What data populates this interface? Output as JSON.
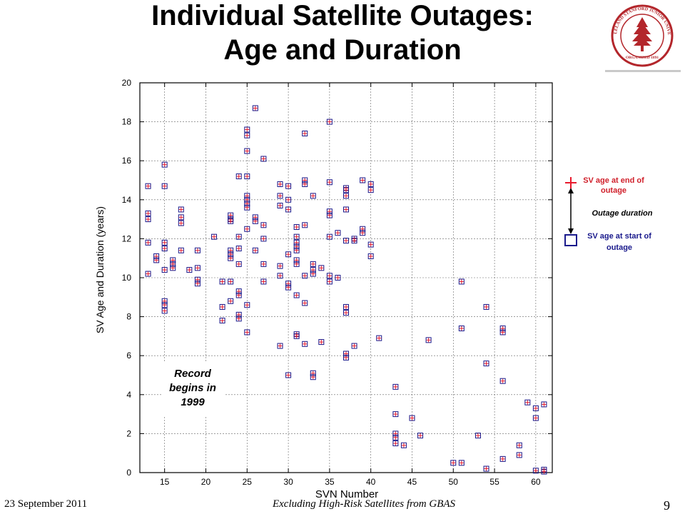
{
  "slide": {
    "title_line1": "Individual Satellite Outages:",
    "title_line2": "Age and Duration",
    "footer_date": "23 September 2011",
    "footer_subtitle": "Excluding High-Risk Satellites from GBAS",
    "page_number": "9",
    "seal_lines": [
      "LELAND STANFORD JUNIOR UNIVERSITY",
      "ORGANIZED 1891"
    ]
  },
  "chart_data": {
    "type": "scatter",
    "title": "",
    "xlabel": "SVN Number",
    "ylabel": "SV Age and Duration (years)",
    "xlim": [
      12,
      62
    ],
    "ylim": [
      0,
      20
    ],
    "xticks": [
      15,
      20,
      25,
      30,
      35,
      40,
      45,
      50,
      55,
      60
    ],
    "yticks": [
      0,
      2,
      4,
      6,
      8,
      10,
      12,
      14,
      16,
      18,
      20
    ],
    "grid": true,
    "annotation": "Record begins in 1999",
    "legend": {
      "placement": "right",
      "end_label": "SV age at end of outage",
      "duration_label": "Outage duration",
      "start_label": "SV age at start of outage"
    },
    "colors": {
      "end_marker": "#e8192c",
      "start_marker": "#1a1a8c",
      "axis": "#000000",
      "grid": "#666666"
    },
    "points": [
      [
        13,
        14.7
      ],
      [
        13,
        13.3
      ],
      [
        13,
        13.0
      ],
      [
        13,
        11.8
      ],
      [
        13,
        10.2
      ],
      [
        14,
        11.1
      ],
      [
        14,
        10.9
      ],
      [
        15,
        15.8
      ],
      [
        15,
        14.7
      ],
      [
        15,
        11.8
      ],
      [
        15,
        11.5
      ],
      [
        15,
        10.4
      ],
      [
        15,
        8.8
      ],
      [
        15,
        8.6
      ],
      [
        15,
        8.3
      ],
      [
        16,
        10.9
      ],
      [
        16,
        10.7
      ],
      [
        16,
        10.5
      ],
      [
        17,
        13.5
      ],
      [
        17,
        13.1
      ],
      [
        17,
        12.8
      ],
      [
        17,
        11.4
      ],
      [
        18,
        10.4
      ],
      [
        19,
        11.4
      ],
      [
        19,
        10.5
      ],
      [
        19,
        9.9
      ],
      [
        19,
        9.7
      ],
      [
        21,
        12.1
      ],
      [
        22,
        9.8
      ],
      [
        22,
        8.5
      ],
      [
        22,
        7.8
      ],
      [
        23,
        13.2
      ],
      [
        23,
        13.0
      ],
      [
        23,
        12.9
      ],
      [
        23,
        11.4
      ],
      [
        23,
        11.2
      ],
      [
        23,
        11.0
      ],
      [
        23,
        9.8
      ],
      [
        23,
        8.8
      ],
      [
        24,
        15.2
      ],
      [
        24,
        12.1
      ],
      [
        24,
        11.5
      ],
      [
        24,
        10.7
      ],
      [
        24,
        9.3
      ],
      [
        24,
        9.1
      ],
      [
        24,
        8.1
      ],
      [
        24,
        7.9
      ],
      [
        25,
        17.6
      ],
      [
        25,
        17.3
      ],
      [
        25,
        16.5
      ],
      [
        25,
        15.2
      ],
      [
        25,
        14.2
      ],
      [
        25,
        14.0
      ],
      [
        25,
        13.8
      ],
      [
        25,
        13.6
      ],
      [
        25,
        12.5
      ],
      [
        25,
        8.6
      ],
      [
        25,
        7.2
      ],
      [
        26,
        18.7
      ],
      [
        26,
        13.1
      ],
      [
        26,
        12.9
      ],
      [
        26,
        11.4
      ],
      [
        27,
        16.1
      ],
      [
        27,
        12.7
      ],
      [
        27,
        12.0
      ],
      [
        27,
        10.7
      ],
      [
        27,
        9.8
      ],
      [
        29,
        14.8
      ],
      [
        29,
        14.2
      ],
      [
        29,
        13.7
      ],
      [
        29,
        10.6
      ],
      [
        29,
        10.1
      ],
      [
        29,
        6.5
      ],
      [
        30,
        14.7
      ],
      [
        30,
        14.0
      ],
      [
        30,
        13.5
      ],
      [
        30,
        11.2
      ],
      [
        30,
        9.7
      ],
      [
        30,
        9.5
      ],
      [
        30,
        5.0
      ],
      [
        31,
        12.6
      ],
      [
        31,
        12.1
      ],
      [
        31,
        11.8
      ],
      [
        31,
        11.6
      ],
      [
        31,
        11.4
      ],
      [
        31,
        10.9
      ],
      [
        31,
        10.7
      ],
      [
        31,
        9.1
      ],
      [
        31,
        7.1
      ],
      [
        31,
        7.0
      ],
      [
        32,
        17.4
      ],
      [
        32,
        15.0
      ],
      [
        32,
        14.8
      ],
      [
        32,
        12.7
      ],
      [
        32,
        10.1
      ],
      [
        32,
        8.7
      ],
      [
        32,
        6.6
      ],
      [
        33,
        14.2
      ],
      [
        33,
        10.7
      ],
      [
        33,
        10.4
      ],
      [
        33,
        10.2
      ],
      [
        33,
        5.1
      ],
      [
        33,
        4.9
      ],
      [
        34,
        10.5
      ],
      [
        34,
        6.7
      ],
      [
        35,
        18.0
      ],
      [
        35,
        14.9
      ],
      [
        35,
        13.4
      ],
      [
        35,
        13.2
      ],
      [
        35,
        12.1
      ],
      [
        35,
        10.1
      ],
      [
        35,
        9.8
      ],
      [
        36,
        12.3
      ],
      [
        36,
        10.0
      ],
      [
        37,
        14.6
      ],
      [
        37,
        14.5
      ],
      [
        37,
        14.2
      ],
      [
        37,
        13.5
      ],
      [
        37,
        11.9
      ],
      [
        37,
        8.5
      ],
      [
        37,
        8.2
      ],
      [
        37,
        6.1
      ],
      [
        37,
        5.9
      ],
      [
        38,
        12.0
      ],
      [
        38,
        11.9
      ],
      [
        38,
        6.5
      ],
      [
        39,
        15.0
      ],
      [
        39,
        12.5
      ],
      [
        39,
        12.3
      ],
      [
        40,
        14.8
      ],
      [
        40,
        14.5
      ],
      [
        40,
        11.7
      ],
      [
        40,
        11.1
      ],
      [
        41,
        6.9
      ],
      [
        43,
        4.4
      ],
      [
        43,
        3.0
      ],
      [
        43,
        2.0
      ],
      [
        43,
        1.8
      ],
      [
        43,
        1.5
      ],
      [
        44,
        1.4
      ],
      [
        45,
        2.8
      ],
      [
        46,
        1.9
      ],
      [
        47,
        6.8
      ],
      [
        50,
        0.5
      ],
      [
        51,
        9.8
      ],
      [
        51,
        7.4
      ],
      [
        51,
        0.5
      ],
      [
        53,
        1.9
      ],
      [
        54,
        8.5
      ],
      [
        54,
        5.6
      ],
      [
        54,
        0.2
      ],
      [
        56,
        7.4
      ],
      [
        56,
        7.2
      ],
      [
        56,
        4.7
      ],
      [
        56,
        0.7
      ],
      [
        58,
        1.4
      ],
      [
        58,
        0.9
      ],
      [
        59,
        3.6
      ],
      [
        60,
        3.3
      ],
      [
        60,
        2.8
      ],
      [
        60,
        0.1
      ],
      [
        61,
        3.5
      ],
      [
        61,
        0.15
      ],
      [
        61,
        0.05
      ]
    ]
  }
}
